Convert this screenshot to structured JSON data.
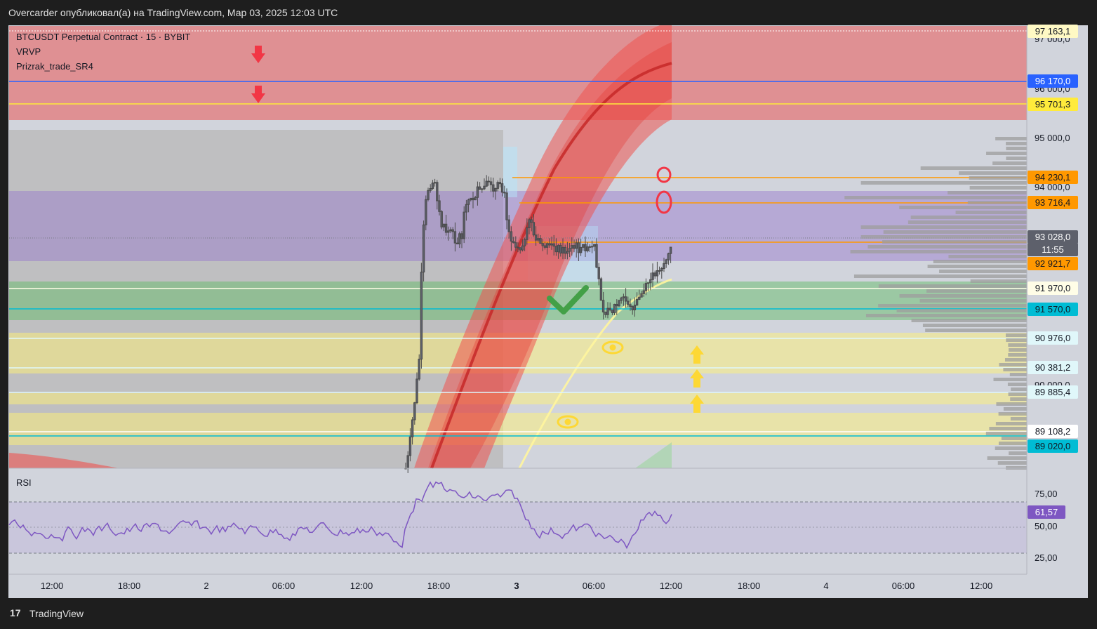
{
  "header": {
    "publish_text": "Overcarder опубликовал(а) на TradingView.com, Мар 03, 2025 12:03 UTC"
  },
  "legend": {
    "symbol": "BTCUSDT Perpetual Contract · 15 · BYBIT",
    "indicator_1": "VRVP",
    "indicator_2": "Prizrak_trade_SR4"
  },
  "rsi": {
    "label": "RSI",
    "axis_ticks": [
      "75,00",
      "50,00",
      "25,00"
    ],
    "current_value": "61,57"
  },
  "price_axis": {
    "ticks": [
      "97 000,0",
      "96 000,0",
      "95 000,0",
      "94 000,0",
      "90 000,0"
    ]
  },
  "price_labels": [
    {
      "text": "97 163,1",
      "bg": "#fff9c4",
      "fg": "#131722"
    },
    {
      "text": "96 170,0",
      "bg": "#2962ff",
      "fg": "#ffffff"
    },
    {
      "text": "95 701,3",
      "bg": "#ffeb3b",
      "fg": "#131722"
    },
    {
      "text": "94 230,1",
      "bg": "#ff9800",
      "fg": "#131722"
    },
    {
      "text": "93 716,4",
      "bg": "#ff9800",
      "fg": "#131722"
    },
    {
      "text": "93 028,0",
      "bg": "#5d606b",
      "fg": "#ffffff"
    },
    {
      "text": "11:55",
      "bg": "#5d606b",
      "fg": "#ffffff"
    },
    {
      "text": "92 921,7",
      "bg": "#ff9800",
      "fg": "#131722"
    },
    {
      "text": "91 970,0",
      "bg": "#fffde7",
      "fg": "#131722"
    },
    {
      "text": "91 570,0",
      "bg": "#00bcd4",
      "fg": "#131722"
    },
    {
      "text": "90 976,0",
      "bg": "#e0f7fa",
      "fg": "#131722"
    },
    {
      "text": "90 381,2",
      "bg": "#e0f7fa",
      "fg": "#131722"
    },
    {
      "text": "89 885,4",
      "bg": "#e0f7fa",
      "fg": "#131722"
    },
    {
      "text": "89 108,2",
      "bg": "#ffffff",
      "fg": "#131722"
    },
    {
      "text": "89 020,0",
      "bg": "#00bcd4",
      "fg": "#131722"
    }
  ],
  "time_axis": {
    "ticks": [
      "12:00",
      "18:00",
      "2",
      "06:00",
      "12:00",
      "18:00",
      "3",
      "06:00",
      "12:00",
      "18:00",
      "4",
      "06:00",
      "12:00"
    ]
  },
  "footer": {
    "brand": "TradingView",
    "logo": "17"
  },
  "colors": {
    "resistance_zone": "#e57373",
    "purple_zone": "#9575cd",
    "green_zone": "#66bb6a",
    "yellow_zone": "#fff176",
    "rsi_line": "#7e57c2"
  },
  "annotations": {
    "checkmark_icon": "check-icon",
    "down_arrows": "arrow-down-icon",
    "up_arrows": "arrow-up-icon",
    "eye_icons": "eye-icon"
  }
}
